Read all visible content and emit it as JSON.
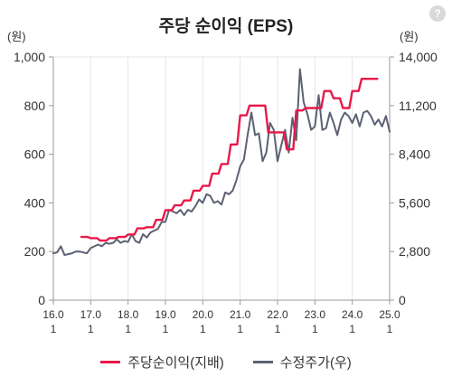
{
  "chart_data": {
    "type": "line",
    "title": "주당 순이익 (EPS)",
    "y_left_unit": "(원)",
    "y_right_unit": "(원)",
    "ylim_left": [
      0,
      1000
    ],
    "ylim_right": [
      0,
      14000
    ],
    "yticks_left": [
      "0",
      "200",
      "400",
      "600",
      "800",
      "1,000"
    ],
    "yticks_right": [
      "0",
      "2,800",
      "5,600",
      "8,400",
      "11,200",
      "14,000"
    ],
    "xlim": [
      2016.0,
      2025.0
    ],
    "xticks": [
      {
        "top": "16.0",
        "bottom": "1"
      },
      {
        "top": "17.0",
        "bottom": "1"
      },
      {
        "top": "18.0",
        "bottom": "1"
      },
      {
        "top": "19.0",
        "bottom": "1"
      },
      {
        "top": "20.0",
        "bottom": "1"
      },
      {
        "top": "21.0",
        "bottom": "1"
      },
      {
        "top": "22.0",
        "bottom": "1"
      },
      {
        "top": "23.0",
        "bottom": "1"
      },
      {
        "top": "24.0",
        "bottom": "1"
      },
      {
        "top": "25.0",
        "bottom": "1"
      }
    ],
    "grid": "vertical",
    "legend_position": "bottom",
    "series": [
      {
        "name": "주당순이익(지배)",
        "axis": "left",
        "color": "#e8194a",
        "x": [
          2016.75,
          2016.92,
          2017.0,
          2017.17,
          2017.25,
          2017.42,
          2017.5,
          2017.67,
          2017.75,
          2017.92,
          2018.0,
          2018.17,
          2018.25,
          2018.42,
          2018.5,
          2018.67,
          2018.75,
          2018.92,
          2019.0,
          2019.17,
          2019.25,
          2019.42,
          2019.5,
          2019.67,
          2019.75,
          2019.92,
          2020.0,
          2020.17,
          2020.25,
          2020.42,
          2020.5,
          2020.67,
          2020.75,
          2020.92,
          2021.0,
          2021.17,
          2021.25,
          2021.42,
          2021.5,
          2021.67,
          2021.75,
          2021.92,
          2022.0,
          2022.17,
          2022.25,
          2022.42,
          2022.5,
          2022.67,
          2022.75,
          2022.92,
          2023.0,
          2023.17,
          2023.25,
          2023.42,
          2023.5,
          2023.67,
          2023.75,
          2023.92,
          2024.0,
          2024.17,
          2024.25,
          2024.42,
          2024.5,
          2024.67
        ],
        "y": [
          260,
          260,
          255,
          255,
          245,
          245,
          255,
          255,
          260,
          260,
          270,
          270,
          295,
          295,
          300,
          300,
          330,
          330,
          370,
          370,
          390,
          390,
          410,
          410,
          450,
          450,
          470,
          470,
          520,
          520,
          560,
          560,
          640,
          640,
          760,
          760,
          800,
          800,
          800,
          800,
          690,
          690,
          690,
          690,
          620,
          620,
          780,
          780,
          790,
          790,
          790,
          790,
          860,
          860,
          830,
          830,
          790,
          790,
          860,
          860,
          910,
          910,
          910,
          910
        ]
      },
      {
        "name": "수정주가(우)",
        "axis": "right",
        "color": "#5c6173",
        "x": [
          2016.0,
          2016.1,
          2016.2,
          2016.3,
          2016.4,
          2016.5,
          2016.6,
          2016.7,
          2016.8,
          2016.9,
          2017.0,
          2017.1,
          2017.2,
          2017.3,
          2017.4,
          2017.5,
          2017.6,
          2017.7,
          2017.8,
          2017.9,
          2018.0,
          2018.1,
          2018.2,
          2018.3,
          2018.4,
          2018.5,
          2018.6,
          2018.7,
          2018.8,
          2018.9,
          2019.0,
          2019.1,
          2019.2,
          2019.3,
          2019.4,
          2019.5,
          2019.6,
          2019.7,
          2019.8,
          2019.9,
          2020.0,
          2020.1,
          2020.2,
          2020.3,
          2020.4,
          2020.5,
          2020.6,
          2020.7,
          2020.8,
          2020.9,
          2021.0,
          2021.1,
          2021.2,
          2021.3,
          2021.4,
          2021.5,
          2021.6,
          2021.7,
          2021.8,
          2021.9,
          2022.0,
          2022.1,
          2022.2,
          2022.3,
          2022.4,
          2022.5,
          2022.6,
          2022.7,
          2022.8,
          2022.9,
          2023.0,
          2023.1,
          2023.2,
          2023.3,
          2023.4,
          2023.5,
          2023.6,
          2023.7,
          2023.8,
          2023.9,
          2024.0,
          2024.1,
          2024.2,
          2024.3,
          2024.4,
          2024.5,
          2024.6,
          2024.7,
          2024.8,
          2024.9,
          2025.0
        ],
        "y": [
          2700,
          2750,
          3100,
          2600,
          2650,
          2700,
          2800,
          2800,
          2750,
          2700,
          3000,
          3100,
          3200,
          3100,
          3300,
          3250,
          3300,
          3500,
          3300,
          3400,
          3350,
          3800,
          3400,
          3300,
          3800,
          3600,
          3900,
          4000,
          4100,
          4500,
          4500,
          5200,
          5100,
          5000,
          5200,
          4900,
          5200,
          5100,
          5400,
          5800,
          5600,
          6100,
          6000,
          5600,
          5700,
          5500,
          6200,
          6100,
          6300,
          6900,
          7700,
          8100,
          9500,
          10800,
          9500,
          9600,
          8000,
          8500,
          10200,
          9800,
          8000,
          8900,
          9800,
          8500,
          10500,
          9200,
          13300,
          11400,
          10700,
          9800,
          10000,
          11800,
          9800,
          9900,
          10800,
          10200,
          9500,
          10400,
          10800,
          10600,
          10200,
          10700,
          10000,
          10800,
          10900,
          10600,
          10100,
          10400,
          10000,
          10600,
          9700
        ]
      }
    ]
  },
  "help_icon": "question-mark-icon",
  "help_label": "?"
}
